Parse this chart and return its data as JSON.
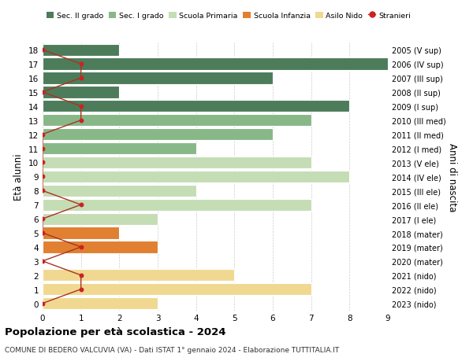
{
  "ages": [
    18,
    17,
    16,
    15,
    14,
    13,
    12,
    11,
    10,
    9,
    8,
    7,
    6,
    5,
    4,
    3,
    2,
    1,
    0
  ],
  "right_labels": [
    "2005 (V sup)",
    "2006 (IV sup)",
    "2007 (III sup)",
    "2008 (II sup)",
    "2009 (I sup)",
    "2010 (III med)",
    "2011 (II med)",
    "2012 (I med)",
    "2013 (V ele)",
    "2014 (IV ele)",
    "2015 (III ele)",
    "2016 (II ele)",
    "2017 (I ele)",
    "2018 (mater)",
    "2019 (mater)",
    "2020 (mater)",
    "2021 (nido)",
    "2022 (nido)",
    "2023 (nido)"
  ],
  "bar_values": [
    2,
    9,
    6,
    2,
    8,
    7,
    6,
    4,
    7,
    8,
    4,
    7,
    3,
    2,
    3,
    0,
    5,
    7,
    3
  ],
  "bar_colors": [
    "#4d7c5a",
    "#4d7c5a",
    "#4d7c5a",
    "#4d7c5a",
    "#4d7c5a",
    "#88b888",
    "#88b888",
    "#88b888",
    "#c5ddb5",
    "#c5ddb5",
    "#c5ddb5",
    "#c5ddb5",
    "#c5ddb5",
    "#e08030",
    "#e08030",
    "#e08030",
    "#f0d890",
    "#f0d890",
    "#f0d890"
  ],
  "stranieri_values": [
    0,
    1,
    1,
    0,
    1,
    1,
    0,
    0,
    0,
    0,
    0,
    1,
    0,
    0,
    1,
    0,
    1,
    1,
    0
  ],
  "stranieri_line_color": "#aa3322",
  "stranieri_dot_color": "#cc2222",
  "legend_labels": [
    "Sec. II grado",
    "Sec. I grado",
    "Scuola Primaria",
    "Scuola Infanzia",
    "Asilo Nido",
    "Stranieri"
  ],
  "legend_colors": [
    "#4d7c5a",
    "#88b888",
    "#c5ddb5",
    "#e08030",
    "#f0d890",
    "#cc2222"
  ],
  "title": "Popolazione per età scolastica - 2024",
  "subtitle": "COMUNE DI BEDERO VALCUVIA (VA) - Dati ISTAT 1° gennaio 2024 - Elaborazione TUTTITALIA.IT",
  "ylabel_left": "Età alunni",
  "ylabel_right": "Anni di nascita",
  "xlim": [
    0,
    9
  ],
  "background_color": "#ffffff",
  "grid_color": "#cccccc"
}
